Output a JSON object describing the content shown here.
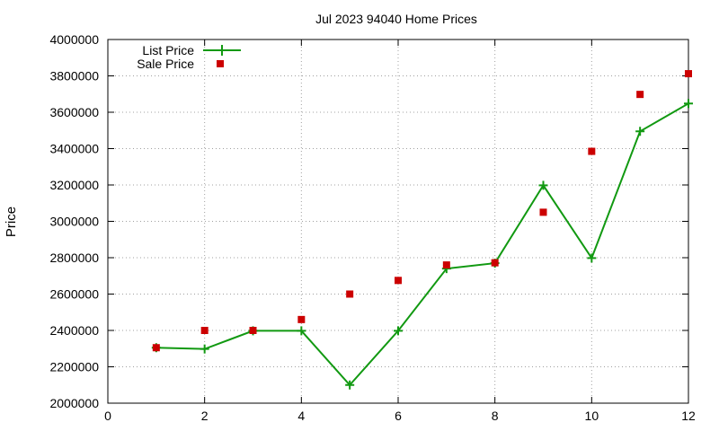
{
  "chart_data": {
    "type": "line",
    "title": "Jul 2023 94040 Home Prices",
    "xlabel": "",
    "ylabel": "Price",
    "xlim": [
      0,
      12
    ],
    "ylim": [
      2000000,
      4000000
    ],
    "x_ticks": [
      0,
      2,
      4,
      6,
      8,
      10,
      12
    ],
    "y_ticks": [
      2000000,
      2200000,
      2400000,
      2600000,
      2800000,
      3000000,
      3200000,
      3400000,
      3600000,
      3800000,
      4000000
    ],
    "x_tick_labels": [
      "0",
      "2",
      "4",
      "6",
      "8",
      "10",
      "12"
    ],
    "y_tick_labels": [
      "2000000",
      "2200000",
      "2400000",
      "2600000",
      "2800000",
      "3000000",
      "3200000",
      "3400000",
      "3600000",
      "3800000",
      "4000000"
    ],
    "grid": true,
    "legend_position": "top-left",
    "series": [
      {
        "name": "List Price",
        "style": "line-with-plus-markers",
        "color": "#119911",
        "x": [
          1,
          2,
          3,
          4,
          5,
          6,
          7,
          8,
          9,
          10,
          11,
          12
        ],
        "y": [
          2305000,
          2298000,
          2398000,
          2398000,
          2100000,
          2398000,
          2740000,
          2770000,
          3198000,
          2798000,
          3495000,
          3648000
        ]
      },
      {
        "name": "Sale Price",
        "style": "square-markers",
        "color": "#cc0000",
        "x": [
          1,
          2,
          3,
          4,
          5,
          6,
          7,
          8,
          9,
          10,
          11,
          12
        ],
        "y": [
          2305000,
          2400000,
          2400000,
          2460000,
          2600000,
          2675000,
          2760000,
          2772000,
          3050000,
          3385000,
          3698000,
          3812000
        ]
      }
    ]
  }
}
